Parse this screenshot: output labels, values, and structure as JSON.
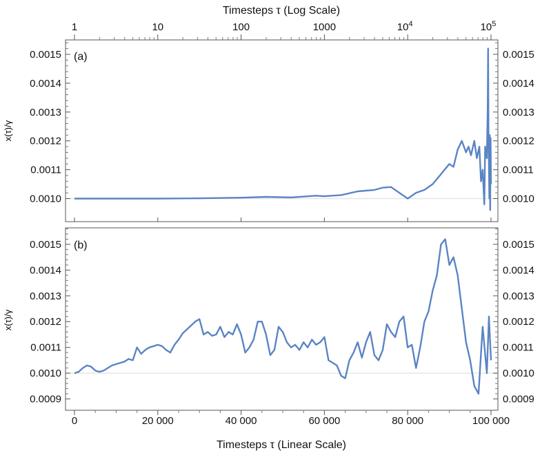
{
  "chart_data": [
    {
      "type": "line",
      "panel_label": "(a)",
      "title": "Timesteps τ (Log Scale)",
      "xscale": "log",
      "xlim": [
        1,
        100000
      ],
      "x_ticks": [
        "1",
        "10",
        "100",
        "1000",
        "10^4",
        "10^5"
      ],
      "x_tick_values": [
        1,
        10,
        100,
        1000,
        10000,
        100000
      ],
      "ylabel": "x(τ)/γ",
      "ylim": [
        0.00092,
        0.00155
      ],
      "y_ticks": [
        "0.0010",
        "0.0011",
        "0.0012",
        "0.0013",
        "0.0014",
        "0.0015"
      ],
      "y_tick_values": [
        0.001,
        0.0011,
        0.0012,
        0.0013,
        0.0014,
        0.0015
      ],
      "color": "#5a84c4",
      "reference_line": 0.001,
      "series": [
        {
          "name": "x(τ)/γ",
          "log10_x": [
            0,
            0.5,
            1,
            1.5,
            2,
            2.3,
            2.6,
            2.9,
            3,
            3.2,
            3.4,
            3.6,
            3.7,
            3.8,
            3.9,
            4.0,
            4.1,
            4.2,
            4.3,
            4.4,
            4.5,
            4.55,
            4.6,
            4.65,
            4.7,
            4.73,
            4.76,
            4.8,
            4.83,
            4.86,
            4.88,
            4.9,
            4.92,
            4.93,
            4.95,
            4.96,
            4.965,
            4.97,
            4.98,
            4.985,
            4.99,
            4.995,
            5.0
          ],
          "values": [
            0.001,
            0.001,
            0.001,
            0.001001,
            0.001003,
            0.001006,
            0.001004,
            0.00101,
            0.001008,
            0.001012,
            0.001025,
            0.00103,
            0.001038,
            0.00104,
            0.00102,
            0.001,
            0.00102,
            0.00103,
            0.00105,
            0.001085,
            0.00112,
            0.00111,
            0.00117,
            0.0012,
            0.00116,
            0.00118,
            0.00115,
            0.0012,
            0.00114,
            0.00118,
            0.00106,
            0.0011,
            0.00098,
            0.00118,
            0.00114,
            0.00131,
            0.00152,
            0.00122,
            0.001,
            0.00122,
            0.00096,
            0.00121,
            0.00105
          ]
        }
      ]
    },
    {
      "type": "line",
      "panel_label": "(b)",
      "xlabel": "Timesteps τ (Linear Scale)",
      "xlim": [
        0,
        100000
      ],
      "x_ticks": [
        "0",
        "20 000",
        "40 000",
        "60 000",
        "80 000",
        "100 000"
      ],
      "x_tick_values": [
        0,
        20000,
        40000,
        60000,
        80000,
        100000
      ],
      "ylabel": "x(τ)/γ",
      "ylim": [
        0.000856,
        0.001564
      ],
      "y_ticks": [
        "0.0009",
        "0.0010",
        "0.0011",
        "0.0012",
        "0.0013",
        "0.0014",
        "0.0015"
      ],
      "y_tick_values": [
        0.0009,
        0.001,
        0.0011,
        0.0012,
        0.0013,
        0.0014,
        0.0015
      ],
      "color": "#5a84c4",
      "reference_line": 0.001,
      "series": [
        {
          "name": "x(τ)/γ",
          "x": [
            0,
            1000,
            2000,
            3000,
            4000,
            5000,
            6000,
            7000,
            8000,
            9000,
            10000,
            11000,
            12000,
            13000,
            14000,
            15000,
            16000,
            17000,
            18000,
            19000,
            20000,
            21000,
            22000,
            23000,
            24000,
            25000,
            26000,
            27000,
            28000,
            29000,
            30000,
            31000,
            32000,
            33000,
            34000,
            35000,
            36000,
            37000,
            38000,
            39000,
            40000,
            41000,
            42000,
            43000,
            44000,
            45000,
            46000,
            47000,
            48000,
            49000,
            50000,
            51000,
            52000,
            53000,
            54000,
            55000,
            56000,
            57000,
            58000,
            59000,
            60000,
            61000,
            62000,
            63000,
            64000,
            65000,
            66000,
            67000,
            68000,
            69000,
            70000,
            71000,
            72000,
            73000,
            74000,
            75000,
            76000,
            77000,
            78000,
            79000,
            80000,
            81000,
            82000,
            83000,
            84000,
            85000,
            86000,
            87000,
            88000,
            89000,
            90000,
            91000,
            92000,
            93000,
            94000,
            95000,
            96000,
            97000,
            98000,
            99000,
            99500,
            100000
          ],
          "values": [
            0.001,
            0.001005,
            0.00102,
            0.00103,
            0.001025,
            0.00101,
            0.001005,
            0.00101,
            0.00102,
            0.00103,
            0.001035,
            0.00104,
            0.001045,
            0.001055,
            0.00105,
            0.0011,
            0.001075,
            0.00109,
            0.0011,
            0.001105,
            0.00111,
            0.001105,
            0.00109,
            0.00108,
            0.00111,
            0.00113,
            0.001155,
            0.00117,
            0.001185,
            0.0012,
            0.00121,
            0.00115,
            0.00116,
            0.001145,
            0.00115,
            0.00118,
            0.00114,
            0.00116,
            0.00115,
            0.00119,
            0.00115,
            0.00108,
            0.0011,
            0.00113,
            0.0012,
            0.0012,
            0.00115,
            0.00107,
            0.00109,
            0.00118,
            0.00116,
            0.00112,
            0.0011,
            0.00111,
            0.00109,
            0.00112,
            0.0011,
            0.00113,
            0.00111,
            0.00112,
            0.00114,
            0.00105,
            0.00104,
            0.00103,
            0.00099,
            0.00098,
            0.00105,
            0.00108,
            0.00112,
            0.00106,
            0.00112,
            0.00116,
            0.00107,
            0.00105,
            0.00109,
            0.00119,
            0.00116,
            0.00114,
            0.0012,
            0.00122,
            0.0011,
            0.00111,
            0.00102,
            0.0011,
            0.0012,
            0.00124,
            0.00132,
            0.00138,
            0.0015,
            0.00152,
            0.00142,
            0.00145,
            0.00138,
            0.00125,
            0.00112,
            0.00105,
            0.00095,
            0.00092,
            0.00118,
            0.001,
            0.00122,
            0.00105
          ]
        }
      ]
    }
  ]
}
